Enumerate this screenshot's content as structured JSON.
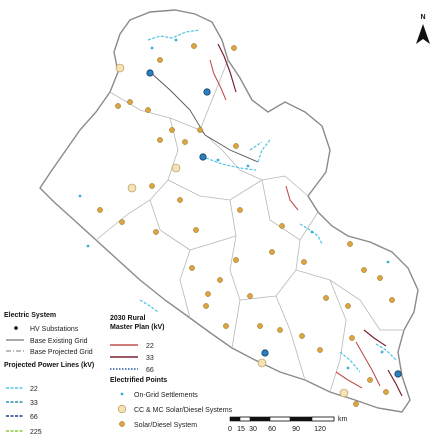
{
  "north_arrow": {
    "letter": "N"
  },
  "legend_left": {
    "electric_system": {
      "title": "Electric System",
      "items": [
        {
          "label": "HV Substations"
        },
        {
          "label": "Base Existing Grid"
        },
        {
          "label": "Base Projected Grid"
        }
      ]
    },
    "projected_lines": {
      "title": "Projected Power Lines (kV)",
      "items": [
        {
          "label": "22",
          "color": "#4fc3e8"
        },
        {
          "label": "33",
          "color": "#2e8fb0"
        },
        {
          "label": "66",
          "color": "#1d3a8a"
        },
        {
          "label": "225",
          "color": "#8dc63f"
        }
      ]
    }
  },
  "legend_right": {
    "master_plan": {
      "title_line1": "2030 Rural",
      "title_line2": "Master Plan (kV)",
      "items": [
        {
          "label": "22",
          "color": "#c0504d"
        },
        {
          "label": "33",
          "color": "#7b2230"
        },
        {
          "label": "66",
          "color": "#2a5ea8"
        }
      ]
    },
    "electrified_points": {
      "title": "Electrified Points",
      "items": [
        {
          "label": "On-Grid Settlements"
        },
        {
          "label": "CC & MC Solar/Diesel Systems"
        },
        {
          "label": "Solar/Diesel System"
        }
      ]
    }
  },
  "scale_bar": {
    "ticks": [
      "0",
      "15",
      "30",
      "60",
      "90",
      "120"
    ],
    "unit": "km"
  },
  "colors": {
    "boundary": "#8a8a8a",
    "district": "#b5b5b5",
    "solar": "#d9a441",
    "cc_mc": "#f3e3b8",
    "substation": "#2a7fc0",
    "line_22": "#4fc3e8",
    "plan_22": "#c0504d",
    "plan_33": "#7b2230"
  }
}
